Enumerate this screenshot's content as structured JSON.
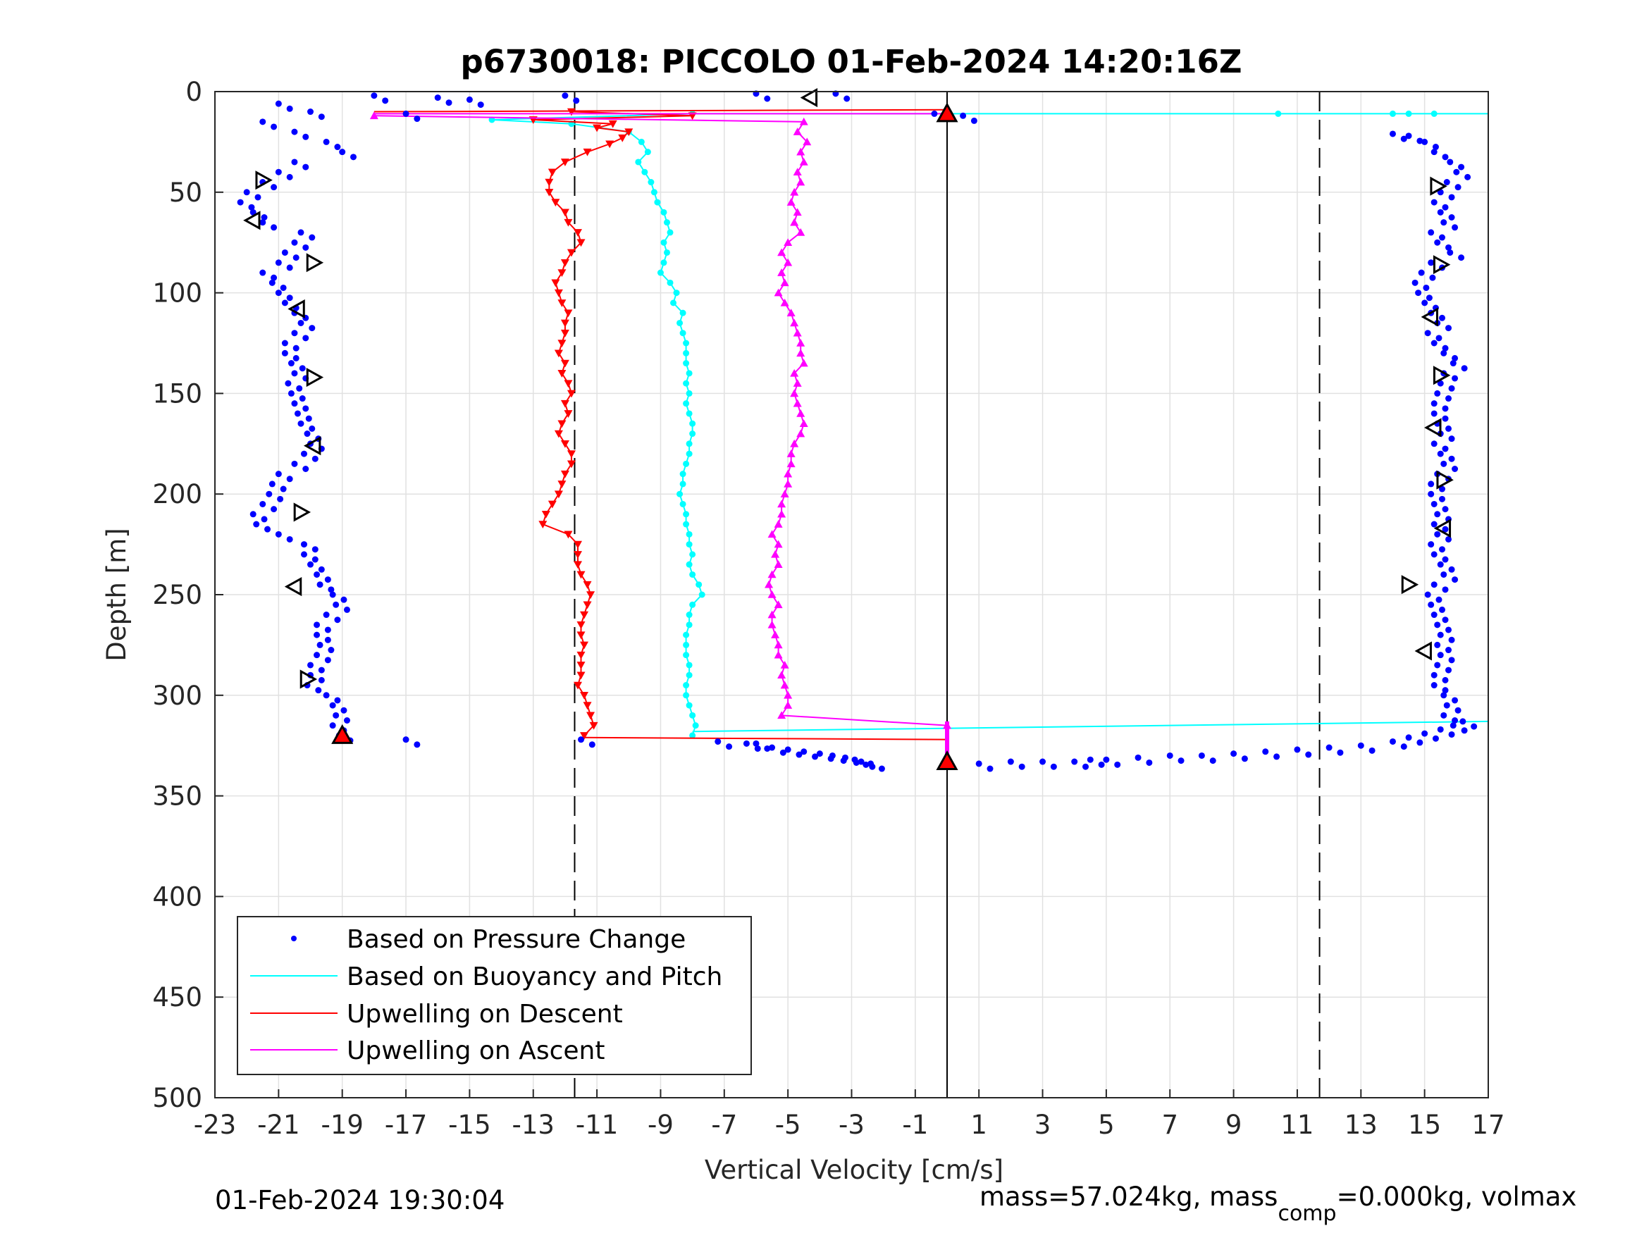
{
  "chart_data": {
    "type": "scatter",
    "title": "p6730018: PICCOLO 01-Feb-2024 14:20:16Z",
    "xlabel": "Vertical Velocity [cm/s]",
    "ylabel": "Depth [m]",
    "xlim": [
      -23,
      17
    ],
    "ylim": [
      0,
      500
    ],
    "y_reversed": true,
    "grid": true,
    "xticks": [
      -23,
      -21,
      -19,
      -17,
      -15,
      -13,
      -11,
      -9,
      -7,
      -5,
      -3,
      -1,
      1,
      3,
      5,
      7,
      9,
      11,
      13,
      15,
      17
    ],
    "yticks": [
      0,
      50,
      100,
      150,
      200,
      250,
      300,
      350,
      400,
      450,
      500
    ],
    "legend_position": "bottom-left",
    "reference_lines": [
      {
        "x": -11.7,
        "style": "dashed"
      },
      {
        "x": 0,
        "style": "solid"
      },
      {
        "x": 11.7,
        "style": "dashed"
      }
    ],
    "series": [
      {
        "name": "Based on Pressure Change",
        "color": "#0000ff",
        "marker": "dot",
        "segments": [
          {
            "depth": [
              6,
              10,
              15,
              20,
              25,
              30,
              35,
              40,
              45,
              50,
              55,
              60,
              65,
              70,
              75,
              80,
              85,
              90,
              95,
              100,
              105,
              110,
              115,
              120,
              125,
              130,
              135,
              140,
              145,
              150,
              155,
              160,
              165,
              170,
              175,
              180,
              185,
              190,
              195,
              200,
              205,
              210,
              215,
              220,
              225,
              230,
              235,
              240,
              245,
              250,
              255,
              260,
              265,
              270,
              275,
              280,
              285,
              290,
              295,
              300,
              305,
              310,
              315,
              320
            ],
            "v": [
              -21,
              -20,
              -21.5,
              -20.5,
              -19.5,
              -19,
              -20.5,
              -21,
              -21.5,
              -22,
              -22.2,
              -21.8,
              -21.5,
              -20.3,
              -20.5,
              -20.8,
              -21,
              -21.5,
              -21.2,
              -21,
              -20.8,
              -20.5,
              -20.3,
              -20.5,
              -20.8,
              -20.8,
              -20.6,
              -20.5,
              -20.7,
              -20.6,
              -20.5,
              -20.4,
              -20.3,
              -20.1,
              -20,
              -20.2,
              -20.5,
              -21,
              -21.2,
              -21.3,
              -21.5,
              -21.8,
              -21.7,
              -21,
              -20.2,
              -20.2,
              -20,
              -19.8,
              -19.7,
              -19.3,
              -19.2,
              -19.5,
              -19.8,
              -19.8,
              -19.7,
              -19.8,
              -20,
              -20,
              -20.1,
              -19.5,
              -19.3,
              -19.2,
              -19.3,
              -19.1
            ]
          },
          {
            "depth": [
              21,
              22,
              25,
              30,
              35,
              40,
              45,
              50,
              55,
              60,
              65,
              70,
              75,
              80,
              85,
              90,
              95,
              100,
              105,
              110,
              115,
              120,
              125,
              130,
              135,
              140,
              145,
              150,
              155,
              160,
              165,
              170,
              175,
              180,
              185,
              190,
              195,
              200,
              205,
              210,
              215,
              220,
              225,
              230,
              235,
              240,
              245,
              250,
              255,
              260,
              265,
              270,
              275,
              280,
              285,
              290,
              295,
              300,
              305,
              310
            ],
            "v": [
              14,
              14.5,
              15,
              15.3,
              15.8,
              16,
              15.7,
              15.5,
              15.3,
              15.5,
              15.6,
              15.2,
              15.4,
              15.8,
              15.2,
              14.9,
              14.7,
              14.8,
              15,
              15.2,
              15.4,
              15.1,
              15.3,
              15.6,
              15.9,
              15.6,
              15.5,
              15.4,
              15.3,
              15.3,
              15.4,
              15.5,
              15.3,
              15.5,
              15.6,
              15.4,
              15.2,
              15.2,
              15.3,
              15.4,
              15.3,
              15.4,
              15.2,
              15.3,
              15.5,
              15.6,
              15.3,
              15.1,
              15.2,
              15.3,
              15.4,
              15.5,
              15.4,
              15.5,
              15.4,
              15.3,
              15.3,
              15.6,
              15.7,
              15.6
            ]
          },
          {
            "depth": [
              324,
              326,
              327,
              328,
              329,
              330,
              331,
              332,
              333,
              334
            ],
            "v": [
              -6,
              -5.5,
              -5,
              -4.5,
              -4,
              -3.6,
              -3.2,
              -2.9,
              -2.7,
              -2.4
            ]
          },
          {
            "depth": [
              334,
              333,
              333,
              333,
              332,
              332,
              331,
              330,
              330,
              329,
              328,
              327,
              326,
              325,
              323,
              321,
              319,
              317,
              315,
              313
            ],
            "v": [
              1,
              2,
              3,
              4,
              4.5,
              5,
              6,
              7,
              8,
              9,
              10,
              11,
              12,
              13,
              14,
              14.5,
              15,
              15.5,
              15.9,
              16.2
            ]
          },
          {
            "depth": [
              2,
              3,
              4,
              2,
              1,
              1,
              11,
              11,
              12,
              322,
              322,
              323,
              324
            ],
            "v": [
              -18,
              -16,
              -15,
              -12,
              -6,
              -3.5,
              -17,
              -0.4,
              0.5,
              -17,
              -11.5,
              -7.2,
              -6.3
            ]
          }
        ]
      },
      {
        "name": "Based on Buoyancy and Pitch",
        "color": "#00ffff",
        "marker": "dot-line",
        "depth": [
          11,
          14,
          16,
          20,
          25,
          30,
          35,
          40,
          45,
          50,
          55,
          60,
          65,
          70,
          75,
          80,
          85,
          90,
          95,
          100,
          105,
          110,
          115,
          120,
          125,
          130,
          135,
          140,
          145,
          150,
          155,
          160,
          165,
          170,
          175,
          180,
          185,
          190,
          195,
          200,
          205,
          210,
          215,
          220,
          225,
          230,
          235,
          240,
          245,
          250,
          255,
          260,
          265,
          270,
          275,
          280,
          285,
          290,
          295,
          300,
          305,
          310,
          315,
          320
        ],
        "v": [
          -8,
          -14.3,
          -11.8,
          -10,
          -9.6,
          -9.4,
          -9.7,
          -9.5,
          -9.3,
          -9.2,
          -9.1,
          -8.9,
          -8.8,
          -8.7,
          -8.9,
          -8.8,
          -8.9,
          -9,
          -8.7,
          -8.5,
          -8.6,
          -8.3,
          -8.4,
          -8.3,
          -8.2,
          -8.2,
          -8.2,
          -8.1,
          -8.2,
          -8.1,
          -8.2,
          -8.1,
          -8,
          -8,
          -8.1,
          -8.1,
          -8.2,
          -8.3,
          -8.3,
          -8.4,
          -8.3,
          -8.2,
          -8.2,
          -8.1,
          -8.1,
          -8,
          -8.1,
          -8,
          -7.8,
          -7.7,
          -8,
          -8.1,
          -8.1,
          -8.2,
          -8.2,
          -8.2,
          -8.1,
          -8.1,
          -8.2,
          -8.2,
          -8.1,
          -8,
          -7.9,
          -8
        ]
      },
      {
        "name": "Upwelling on Descent",
        "color": "#ff0000",
        "marker": "triangle-down",
        "depth": [
          10,
          12,
          14,
          16,
          18,
          20,
          23,
          26,
          30,
          35,
          40,
          45,
          50,
          55,
          60,
          65,
          70,
          75,
          80,
          85,
          90,
          95,
          100,
          105,
          110,
          115,
          120,
          125,
          130,
          135,
          140,
          145,
          150,
          155,
          160,
          165,
          170,
          175,
          180,
          185,
          190,
          195,
          200,
          205,
          210,
          215,
          220,
          225,
          230,
          235,
          240,
          245,
          250,
          255,
          260,
          265,
          270,
          275,
          280,
          285,
          290,
          295,
          300,
          305,
          310,
          315,
          320
        ],
        "v": [
          -11.8,
          -8,
          -13,
          -10.5,
          -11,
          -10,
          -10.2,
          -10.6,
          -11.3,
          -12,
          -12.4,
          -12.5,
          -12.5,
          -12.3,
          -12,
          -11.9,
          -11.6,
          -11.5,
          -11.8,
          -12,
          -12.1,
          -12.3,
          -12.2,
          -12.1,
          -11.9,
          -12,
          -12,
          -12.1,
          -12.2,
          -12,
          -12.1,
          -11.9,
          -11.8,
          -12,
          -11.9,
          -12.1,
          -12.2,
          -12,
          -11.8,
          -11.8,
          -12,
          -12.1,
          -12.2,
          -12.4,
          -12.6,
          -12.7,
          -11.9,
          -11.6,
          -11.6,
          -11.6,
          -11.5,
          -11.3,
          -11.2,
          -11.3,
          -11.4,
          -11.5,
          -11.5,
          -11.4,
          -11.5,
          -11.5,
          -11.5,
          -11.6,
          -11.4,
          -11.3,
          -11.2,
          -11.1,
          -11.4
        ]
      },
      {
        "name": "Upwelling on Ascent",
        "color": "#ff00ff",
        "marker": "triangle-up",
        "depth": [
          12,
          15,
          20,
          25,
          30,
          35,
          40,
          45,
          50,
          55,
          60,
          65,
          70,
          75,
          80,
          85,
          90,
          95,
          100,
          105,
          110,
          115,
          120,
          125,
          130,
          135,
          140,
          145,
          150,
          155,
          160,
          165,
          170,
          175,
          180,
          185,
          190,
          195,
          200,
          205,
          210,
          215,
          220,
          225,
          230,
          235,
          240,
          245,
          250,
          255,
          260,
          265,
          270,
          275,
          280,
          285,
          290,
          295,
          300,
          305,
          310,
          315
        ],
        "v": [
          -18,
          -4.5,
          -4.7,
          -4.4,
          -4.6,
          -4.5,
          -4.7,
          -4.6,
          -4.8,
          -4.9,
          -4.7,
          -4.8,
          -4.6,
          -5,
          -5.2,
          -5,
          -5.2,
          -5.1,
          -5.3,
          -5.1,
          -4.9,
          -4.8,
          -4.7,
          -4.6,
          -4.6,
          -4.5,
          -4.8,
          -4.7,
          -4.8,
          -4.7,
          -4.6,
          -4.5,
          -4.6,
          -4.8,
          -4.9,
          -4.9,
          -5,
          -5,
          -5.1,
          -5.2,
          -5.2,
          -5.3,
          -5.5,
          -5.3,
          -5.4,
          -5.3,
          -5.5,
          -5.6,
          -5.5,
          -5.3,
          -5.5,
          -5.5,
          -5.4,
          -5.3,
          -5.3,
          -5.1,
          -5.2,
          -5.1,
          -5,
          -5,
          -5.2,
          0
        ]
      }
    ],
    "markers": [
      {
        "v": 0,
        "depth": 11,
        "shape": "triangle-up",
        "fill": "#ff0000"
      },
      {
        "v": -19,
        "depth": 320,
        "shape": "triangle-up",
        "fill": "#ff0000"
      },
      {
        "v": 0,
        "depth": 333,
        "shape": "triangle-up",
        "fill": "#ff0000"
      },
      {
        "v": -4.3,
        "depth": 3,
        "shape": "triangle-left",
        "fill": "none"
      },
      {
        "v": -21.5,
        "depth": 44,
        "shape": "triangle-right",
        "fill": "none"
      },
      {
        "v": -21.8,
        "depth": 64,
        "shape": "triangle-left",
        "fill": "none"
      },
      {
        "v": -19.9,
        "depth": 85,
        "shape": "triangle-right",
        "fill": "none"
      },
      {
        "v": -20.4,
        "depth": 108,
        "shape": "triangle-left",
        "fill": "none"
      },
      {
        "v": -19.9,
        "depth": 142,
        "shape": "triangle-right",
        "fill": "none"
      },
      {
        "v": -19.9,
        "depth": 176,
        "shape": "triangle-left",
        "fill": "none"
      },
      {
        "v": -20.3,
        "depth": 209,
        "shape": "triangle-right",
        "fill": "none"
      },
      {
        "v": -20.5,
        "depth": 246,
        "shape": "triangle-left",
        "fill": "none"
      },
      {
        "v": -20.1,
        "depth": 292,
        "shape": "triangle-right",
        "fill": "none"
      },
      {
        "v": 15.4,
        "depth": 47,
        "shape": "triangle-right",
        "fill": "none"
      },
      {
        "v": 15.5,
        "depth": 86,
        "shape": "triangle-right",
        "fill": "none"
      },
      {
        "v": 15.2,
        "depth": 112,
        "shape": "triangle-left",
        "fill": "none"
      },
      {
        "v": 15.5,
        "depth": 141,
        "shape": "triangle-right",
        "fill": "none"
      },
      {
        "v": 15.3,
        "depth": 167,
        "shape": "triangle-left",
        "fill": "none"
      },
      {
        "v": 15.6,
        "depth": 193,
        "shape": "triangle-right",
        "fill": "none"
      },
      {
        "v": 15.6,
        "depth": 217,
        "shape": "triangle-left",
        "fill": "none"
      },
      {
        "v": 14.5,
        "depth": 245,
        "shape": "triangle-right",
        "fill": "none"
      },
      {
        "v": 15,
        "depth": 278,
        "shape": "triangle-left",
        "fill": "none"
      }
    ]
  },
  "footer": {
    "left": "01-Feb-2024 19:30:04",
    "right_prefix": "mass=57.024kg, mass",
    "right_sub": "comp",
    "right_suffix": "=0.000kg, volmax"
  }
}
